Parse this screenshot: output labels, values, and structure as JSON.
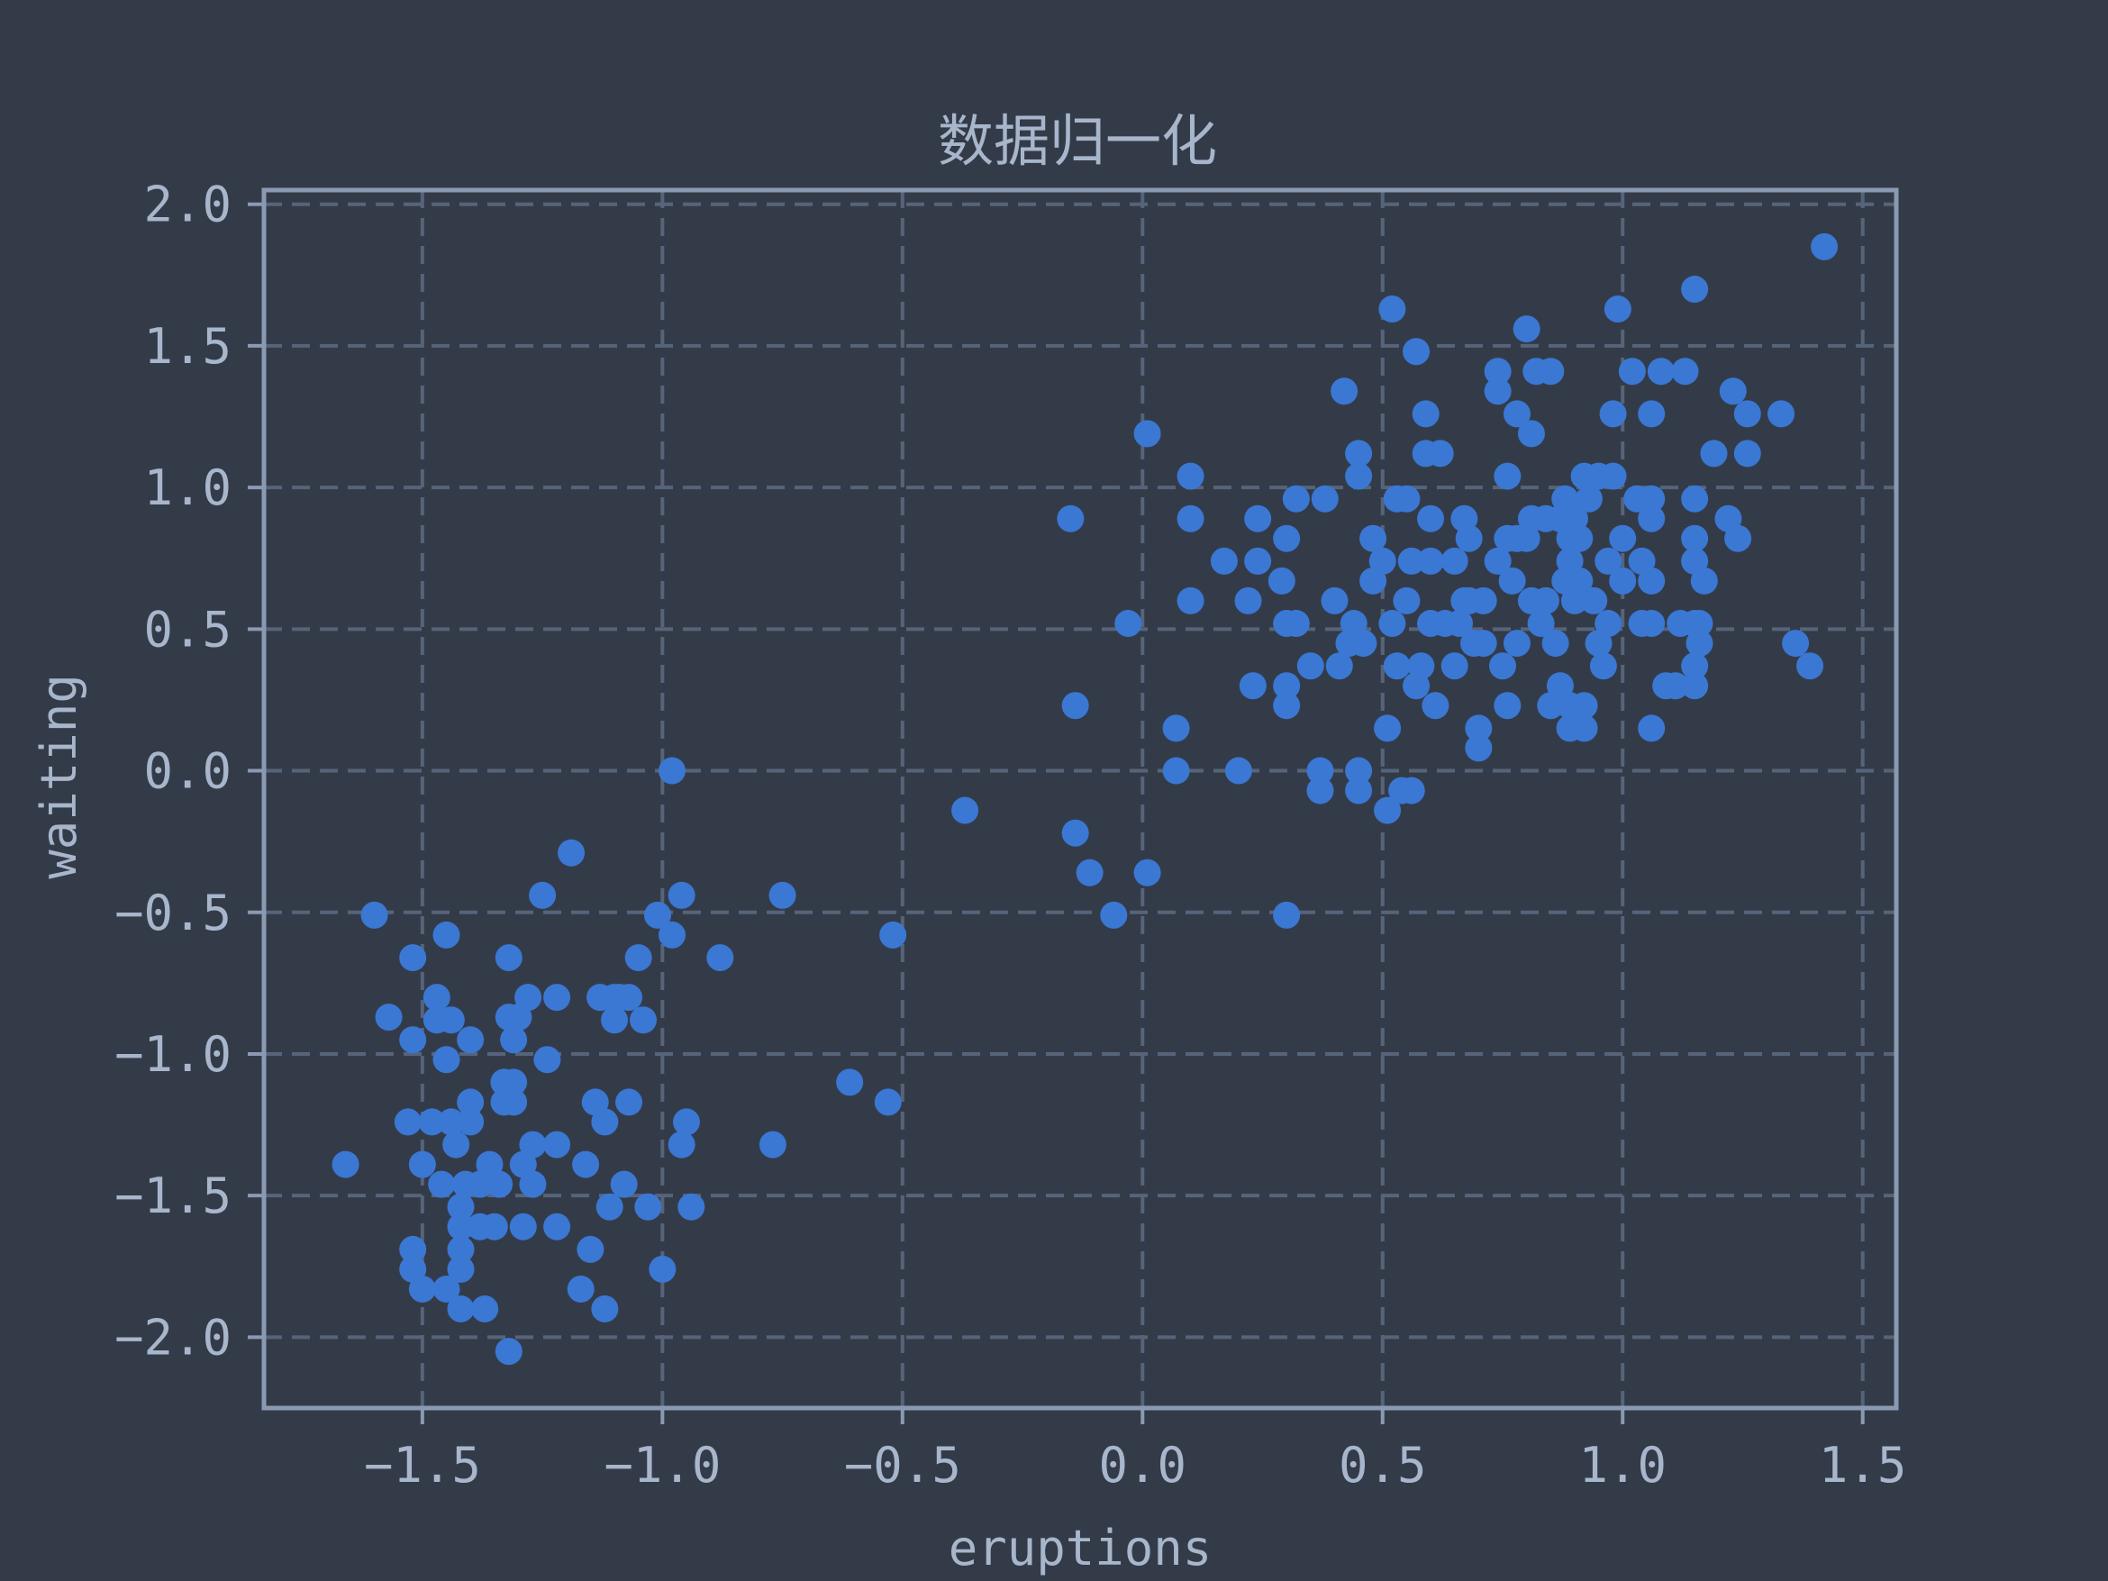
{
  "chart_data": {
    "type": "scatter",
    "title": "数据归一化",
    "xlabel": "eruptions",
    "ylabel": "waiting",
    "xlim": [
      -1.83,
      1.57
    ],
    "ylim": [
      -2.25,
      2.05
    ],
    "xticks": [
      -1.5,
      -1.0,
      -0.5,
      0.0,
      0.5,
      1.0,
      1.5
    ],
    "xtick_labels": [
      "−1.5",
      "−1.0",
      "−0.5",
      "0.0",
      "0.5",
      "1.0",
      "1.5"
    ],
    "yticks": [
      -2.0,
      -1.5,
      -1.0,
      -0.5,
      0.0,
      0.5,
      1.0,
      1.5,
      2.0
    ],
    "ytick_labels": [
      "−2.0",
      "−1.5",
      "−1.0",
      "−0.5",
      "0.0",
      "0.5",
      "1.0",
      "1.5",
      "2.0"
    ],
    "grid": true,
    "grid_style": "dashed",
    "colors": {
      "background": "#343b48",
      "marker": "#3a78d4",
      "axes": "#8a9ab3",
      "grid": "#56647a",
      "text": "#a8b6cc"
    },
    "points": [
      [
        -1.66,
        -1.39
      ],
      [
        -1.6,
        -0.51
      ],
      [
        -1.57,
        -0.87
      ],
      [
        -1.53,
        -1.24
      ],
      [
        -1.52,
        -0.66
      ],
      [
        -1.52,
        -0.95
      ],
      [
        -1.52,
        -1.69
      ],
      [
        -1.52,
        -1.76
      ],
      [
        -1.5,
        -1.39
      ],
      [
        -1.5,
        -1.83
      ],
      [
        -1.48,
        -1.24
      ],
      [
        -1.47,
        -0.8
      ],
      [
        -1.47,
        -0.88
      ],
      [
        -1.46,
        -1.46
      ],
      [
        -1.45,
        -1.83
      ],
      [
        -1.45,
        -0.58
      ],
      [
        -1.45,
        -1.02
      ],
      [
        -1.44,
        -0.88
      ],
      [
        -1.44,
        -1.24
      ],
      [
        -1.43,
        -1.32
      ],
      [
        -1.42,
        -1.54
      ],
      [
        -1.42,
        -1.61
      ],
      [
        -1.42,
        -1.69
      ],
      [
        -1.42,
        -1.76
      ],
      [
        -1.42,
        -1.9
      ],
      [
        -1.41,
        -1.46
      ],
      [
        -1.4,
        -1.17
      ],
      [
        -1.4,
        -1.24
      ],
      [
        -1.4,
        -0.95
      ],
      [
        -1.38,
        -1.46
      ],
      [
        -1.38,
        -1.61
      ],
      [
        -1.37,
        -1.9
      ],
      [
        -1.36,
        -1.39
      ],
      [
        -1.35,
        -1.61
      ],
      [
        -1.34,
        -1.46
      ],
      [
        -1.33,
        -1.1
      ],
      [
        -1.33,
        -1.17
      ],
      [
        -1.32,
        -0.66
      ],
      [
        -1.32,
        -0.87
      ],
      [
        -1.32,
        -2.05
      ],
      [
        -1.31,
        -1.1
      ],
      [
        -1.31,
        -1.17
      ],
      [
        -1.31,
        -0.95
      ],
      [
        -1.3,
        -0.87
      ],
      [
        -1.29,
        -1.39
      ],
      [
        -1.29,
        -1.61
      ],
      [
        -1.28,
        -0.8
      ],
      [
        -1.27,
        -1.32
      ],
      [
        -1.27,
        -1.46
      ],
      [
        -1.25,
        -0.44
      ],
      [
        -1.24,
        -1.02
      ],
      [
        -1.22,
        -0.8
      ],
      [
        -1.22,
        -1.32
      ],
      [
        -1.22,
        -1.61
      ],
      [
        -1.19,
        -0.29
      ],
      [
        -1.17,
        -1.83
      ],
      [
        -1.16,
        -1.39
      ],
      [
        -1.15,
        -1.69
      ],
      [
        -1.14,
        -1.17
      ],
      [
        -1.13,
        -0.8
      ],
      [
        -1.12,
        -1.24
      ],
      [
        -1.12,
        -1.9
      ],
      [
        -1.11,
        -1.54
      ],
      [
        -1.1,
        -0.8
      ],
      [
        -1.1,
        -0.88
      ],
      [
        -1.09,
        -0.8
      ],
      [
        -1.08,
        -1.46
      ],
      [
        -1.07,
        -0.8
      ],
      [
        -1.07,
        -1.17
      ],
      [
        -1.05,
        -0.66
      ],
      [
        -1.04,
        -0.88
      ],
      [
        -1.03,
        -1.54
      ],
      [
        -1.01,
        -0.51
      ],
      [
        -1.0,
        -1.76
      ],
      [
        -0.98,
        -0.58
      ],
      [
        -0.98,
        0.0
      ],
      [
        -0.96,
        -0.44
      ],
      [
        -0.96,
        -1.32
      ],
      [
        -0.95,
        -1.24
      ],
      [
        -0.94,
        -1.54
      ],
      [
        -0.88,
        -0.66
      ],
      [
        -0.77,
        -1.32
      ],
      [
        -0.75,
        -0.44
      ],
      [
        -0.61,
        -1.1
      ],
      [
        -0.53,
        -1.17
      ],
      [
        -0.52,
        -0.58
      ],
      [
        -0.37,
        -0.14
      ],
      [
        -0.15,
        0.89
      ],
      [
        -0.14,
        0.23
      ],
      [
        -0.14,
        -0.22
      ],
      [
        -0.11,
        -0.36
      ],
      [
        -0.06,
        -0.51
      ],
      [
        -0.03,
        0.52
      ],
      [
        0.01,
        -0.36
      ],
      [
        0.01,
        1.19
      ],
      [
        0.07,
        0.15
      ],
      [
        0.07,
        0.0
      ],
      [
        0.1,
        1.04
      ],
      [
        0.1,
        0.89
      ],
      [
        0.1,
        0.6
      ],
      [
        0.17,
        0.74
      ],
      [
        0.2,
        0.0
      ],
      [
        0.22,
        0.6
      ],
      [
        0.23,
        0.3
      ],
      [
        0.24,
        0.74
      ],
      [
        0.24,
        0.89
      ],
      [
        0.29,
        0.67
      ],
      [
        0.3,
        0.82
      ],
      [
        0.3,
        0.52
      ],
      [
        0.3,
        0.3
      ],
      [
        0.3,
        0.23
      ],
      [
        0.3,
        -0.51
      ],
      [
        0.32,
        0.96
      ],
      [
        0.32,
        0.52
      ],
      [
        0.35,
        0.37
      ],
      [
        0.37,
        0.0
      ],
      [
        0.37,
        -0.07
      ],
      [
        0.38,
        0.96
      ],
      [
        0.4,
        0.6
      ],
      [
        0.41,
        0.37
      ],
      [
        0.42,
        1.34
      ],
      [
        0.43,
        0.45
      ],
      [
        0.44,
        0.52
      ],
      [
        0.45,
        1.04
      ],
      [
        0.45,
        1.12
      ],
      [
        0.45,
        0.0
      ],
      [
        0.45,
        -0.07
      ],
      [
        0.46,
        0.45
      ],
      [
        0.48,
        0.82
      ],
      [
        0.48,
        0.67
      ],
      [
        0.5,
        0.74
      ],
      [
        0.51,
        0.15
      ],
      [
        0.51,
        -0.14
      ],
      [
        0.52,
        0.52
      ],
      [
        0.52,
        1.63
      ],
      [
        0.53,
        0.96
      ],
      [
        0.53,
        0.37
      ],
      [
        0.54,
        -0.07
      ],
      [
        0.55,
        0.96
      ],
      [
        0.55,
        0.6
      ],
      [
        0.56,
        0.74
      ],
      [
        0.56,
        -0.07
      ],
      [
        0.57,
        1.48
      ],
      [
        0.57,
        0.3
      ],
      [
        0.58,
        0.37
      ],
      [
        0.59,
        1.12
      ],
      [
        0.59,
        1.26
      ],
      [
        0.6,
        0.89
      ],
      [
        0.6,
        0.52
      ],
      [
        0.6,
        0.74
      ],
      [
        0.61,
        0.23
      ],
      [
        0.62,
        1.12
      ],
      [
        0.63,
        0.52
      ],
      [
        0.65,
        0.74
      ],
      [
        0.65,
        0.37
      ],
      [
        0.66,
        0.52
      ],
      [
        0.67,
        0.6
      ],
      [
        0.67,
        0.89
      ],
      [
        0.68,
        0.6
      ],
      [
        0.68,
        0.82
      ],
      [
        0.69,
        0.45
      ],
      [
        0.7,
        0.15
      ],
      [
        0.7,
        0.08
      ],
      [
        0.71,
        0.45
      ],
      [
        0.71,
        0.6
      ],
      [
        0.74,
        0.74
      ],
      [
        0.74,
        1.41
      ],
      [
        0.74,
        1.34
      ],
      [
        0.75,
        0.37
      ],
      [
        0.76,
        0.82
      ],
      [
        0.76,
        1.04
      ],
      [
        0.76,
        0.23
      ],
      [
        0.77,
        0.67
      ],
      [
        0.78,
        1.26
      ],
      [
        0.78,
        0.82
      ],
      [
        0.78,
        0.45
      ],
      [
        0.8,
        1.56
      ],
      [
        0.8,
        0.82
      ],
      [
        0.81,
        1.19
      ],
      [
        0.81,
        0.89
      ],
      [
        0.81,
        0.6
      ],
      [
        0.82,
        1.41
      ],
      [
        0.83,
        0.52
      ],
      [
        0.84,
        0.6
      ],
      [
        0.84,
        0.89
      ],
      [
        0.85,
        1.41
      ],
      [
        0.85,
        0.23
      ],
      [
        0.86,
        0.45
      ],
      [
        0.87,
        0.89
      ],
      [
        0.87,
        0.3
      ],
      [
        0.88,
        0.67
      ],
      [
        0.88,
        0.96
      ],
      [
        0.89,
        0.74
      ],
      [
        0.89,
        0.82
      ],
      [
        0.89,
        0.23
      ],
      [
        0.89,
        0.15
      ],
      [
        0.9,
        0.6
      ],
      [
        0.9,
        0.89
      ],
      [
        0.91,
        0.67
      ],
      [
        0.91,
        0.82
      ],
      [
        0.92,
        1.04
      ],
      [
        0.92,
        0.23
      ],
      [
        0.92,
        0.15
      ],
      [
        0.93,
        0.96
      ],
      [
        0.94,
        0.6
      ],
      [
        0.95,
        1.04
      ],
      [
        0.95,
        0.45
      ],
      [
        0.96,
        0.37
      ],
      [
        0.97,
        0.52
      ],
      [
        0.97,
        0.74
      ],
      [
        0.98,
        1.26
      ],
      [
        0.98,
        1.04
      ],
      [
        0.99,
        1.63
      ],
      [
        1.0,
        0.67
      ],
      [
        1.0,
        0.82
      ],
      [
        1.02,
        1.41
      ],
      [
        1.03,
        0.96
      ],
      [
        1.04,
        0.52
      ],
      [
        1.04,
        0.74
      ],
      [
        1.06,
        0.89
      ],
      [
        1.06,
        0.96
      ],
      [
        1.06,
        1.26
      ],
      [
        1.06,
        0.52
      ],
      [
        1.06,
        0.67
      ],
      [
        1.06,
        0.15
      ],
      [
        1.08,
        1.41
      ],
      [
        1.09,
        0.3
      ],
      [
        1.11,
        0.3
      ],
      [
        1.12,
        0.52
      ],
      [
        1.13,
        1.41
      ],
      [
        1.15,
        1.7
      ],
      [
        1.15,
        0.96
      ],
      [
        1.15,
        0.82
      ],
      [
        1.15,
        0.74
      ],
      [
        1.15,
        0.52
      ],
      [
        1.15,
        0.37
      ],
      [
        1.15,
        0.3
      ],
      [
        1.16,
        0.45
      ],
      [
        1.16,
        0.52
      ],
      [
        1.17,
        0.67
      ],
      [
        1.19,
        1.12
      ],
      [
        1.22,
        0.89
      ],
      [
        1.23,
        1.34
      ],
      [
        1.24,
        0.82
      ],
      [
        1.26,
        1.26
      ],
      [
        1.26,
        1.12
      ],
      [
        1.33,
        1.26
      ],
      [
        1.36,
        0.45
      ],
      [
        1.39,
        0.37
      ],
      [
        1.42,
        1.85
      ]
    ]
  }
}
